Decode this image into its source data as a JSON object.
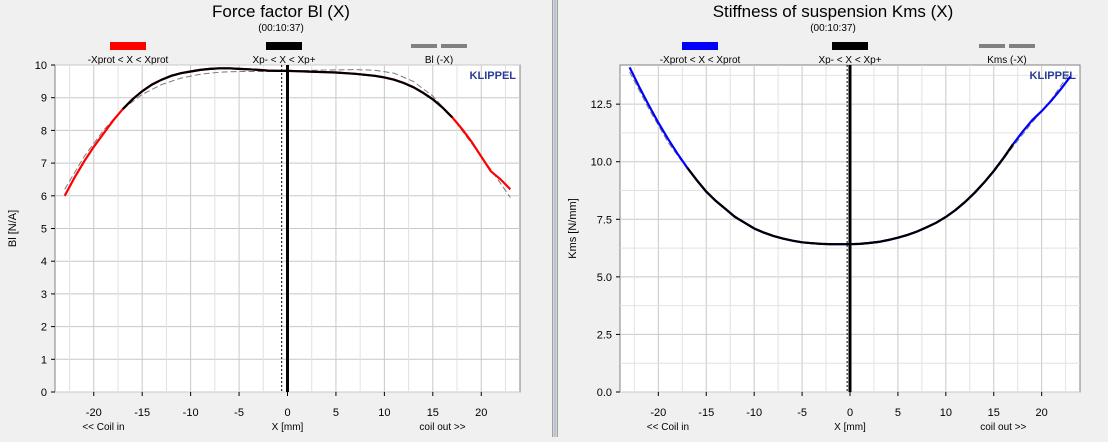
{
  "charts": [
    {
      "id": "left",
      "title": "Force factor Bl (X)",
      "time": "(00:10:37)",
      "brand": "KLIPPEL",
      "ylabel": "Bl [N/A]",
      "xlabel": "X [mm]",
      "xnote_left": "<< Coil in",
      "xnote_right": "coil out >>",
      "legend": [
        {
          "label": "-Xprot < X < Xprot",
          "color": "#ff0000",
          "style": "thick"
        },
        {
          "label": "Xp- < X < Xp+",
          "color": "#000000",
          "style": "thick"
        },
        {
          "label": "Bl (-X)",
          "color": "#808080",
          "style": "dashed"
        }
      ],
      "xlim": [
        -24,
        24
      ],
      "ylim": [
        0,
        10
      ],
      "xticks": [
        -20,
        -15,
        -10,
        -5,
        0,
        5,
        10,
        15,
        20
      ],
      "yticks": [
        0,
        1,
        2,
        3,
        4,
        5,
        6,
        7,
        8,
        9,
        10
      ],
      "ytick_labels": [
        "0",
        "1",
        "2",
        "3",
        "4",
        "5",
        "6",
        "7",
        "8",
        "9",
        "10"
      ],
      "vline_x": 0,
      "dotted_x": -0.6,
      "inner_range": [
        -17,
        17
      ],
      "series": [
        {
          "x": [
            -23,
            -22,
            -21,
            -20,
            -19,
            -18,
            -17,
            -16,
            -15,
            -14,
            -13,
            -12,
            -11,
            -10,
            -9,
            -8,
            -7,
            -6,
            -5,
            -4,
            -3,
            -2,
            -1,
            0,
            1,
            2,
            3,
            4,
            5,
            6,
            7,
            8,
            9,
            10,
            11,
            12,
            13,
            14,
            15,
            16,
            17,
            18,
            19,
            20,
            21,
            22,
            23
          ],
          "y": [
            6.0,
            6.55,
            7.05,
            7.5,
            7.9,
            8.3,
            8.65,
            8.95,
            9.2,
            9.4,
            9.55,
            9.67,
            9.75,
            9.8,
            9.85,
            9.88,
            9.9,
            9.9,
            9.88,
            9.87,
            9.85,
            9.83,
            9.82,
            9.82,
            9.81,
            9.8,
            9.79,
            9.78,
            9.77,
            9.75,
            9.73,
            9.7,
            9.67,
            9.62,
            9.55,
            9.45,
            9.32,
            9.15,
            8.95,
            8.7,
            8.4,
            8.05,
            7.65,
            7.2,
            6.75,
            6.5,
            6.2
          ]
        },
        {
          "x": [
            -23,
            -21,
            -19,
            -17,
            -15,
            -13,
            -11,
            -9,
            -7,
            -5,
            -3,
            -1,
            1,
            3,
            5,
            7,
            9,
            11,
            13,
            15,
            17,
            19,
            21,
            23
          ],
          "y": [
            6.2,
            7.2,
            8.0,
            8.65,
            9.1,
            9.4,
            9.6,
            9.72,
            9.78,
            9.8,
            9.8,
            9.8,
            9.82,
            9.84,
            9.85,
            9.86,
            9.84,
            9.75,
            9.5,
            9.05,
            8.4,
            7.6,
            6.8,
            5.95
          ]
        }
      ]
    },
    {
      "id": "right",
      "title": "Stiffness of suspension Kms (X)",
      "time": "(00:10:37)",
      "brand": "KLIPPEL",
      "ylabel": "Kms [N/mm]",
      "xlabel": "X [mm]",
      "xnote_left": "<< Coil in",
      "xnote_right": "coil out >>",
      "legend": [
        {
          "label": "-Xprot < X < Xprot",
          "color": "#0000ff",
          "style": "thick"
        },
        {
          "label": "Xp- < X < Xp+",
          "color": "#000000",
          "style": "thick"
        },
        {
          "label": "Kms (-X)",
          "color": "#808080",
          "style": "dashed"
        }
      ],
      "xlim": [
        -24,
        24
      ],
      "ylim": [
        0,
        14.2
      ],
      "xticks": [
        -20,
        -15,
        -10,
        -5,
        0,
        5,
        10,
        15,
        20
      ],
      "yticks": [
        0,
        2.5,
        5,
        7.5,
        10,
        12.5
      ],
      "ytick_labels": [
        "0.0",
        "2.5",
        "5.0",
        "7.5",
        "10.0",
        "12.5"
      ],
      "vline_x": 0,
      "dotted_x": -0.3,
      "inner_range": [
        -17,
        17
      ],
      "series": [
        {
          "x": [
            -23,
            -22,
            -21,
            -20,
            -19,
            -18,
            -17,
            -16,
            -15,
            -14,
            -13,
            -12,
            -11,
            -10,
            -9,
            -8,
            -7,
            -6,
            -5,
            -4,
            -3,
            -2,
            -1,
            0,
            1,
            2,
            3,
            4,
            5,
            6,
            7,
            8,
            9,
            10,
            11,
            12,
            13,
            14,
            15,
            16,
            17,
            18,
            19,
            20,
            21,
            22,
            23
          ],
          "y": [
            14.1,
            13.25,
            12.45,
            11.7,
            11.0,
            10.35,
            9.75,
            9.2,
            8.7,
            8.3,
            7.95,
            7.6,
            7.35,
            7.1,
            6.92,
            6.78,
            6.66,
            6.57,
            6.5,
            6.46,
            6.43,
            6.42,
            6.42,
            6.42,
            6.43,
            6.47,
            6.52,
            6.6,
            6.7,
            6.82,
            6.97,
            7.15,
            7.35,
            7.6,
            7.9,
            8.25,
            8.65,
            9.1,
            9.6,
            10.15,
            10.75,
            11.3,
            11.8,
            12.2,
            12.65,
            13.15,
            13.7
          ]
        },
        {
          "x": [
            -23,
            -21,
            -19,
            -17,
            -15,
            -13,
            -11,
            -9,
            -7,
            -5,
            -3,
            -1,
            1,
            3,
            5,
            7,
            9,
            11,
            13,
            15,
            17,
            19,
            21,
            23
          ],
          "y": [
            13.9,
            12.3,
            10.85,
            9.7,
            8.7,
            7.95,
            7.35,
            6.92,
            6.64,
            6.5,
            6.44,
            6.42,
            6.44,
            6.55,
            6.7,
            6.96,
            7.35,
            7.9,
            8.6,
            9.55,
            10.65,
            11.7,
            12.7,
            13.9
          ]
        }
      ]
    }
  ]
}
